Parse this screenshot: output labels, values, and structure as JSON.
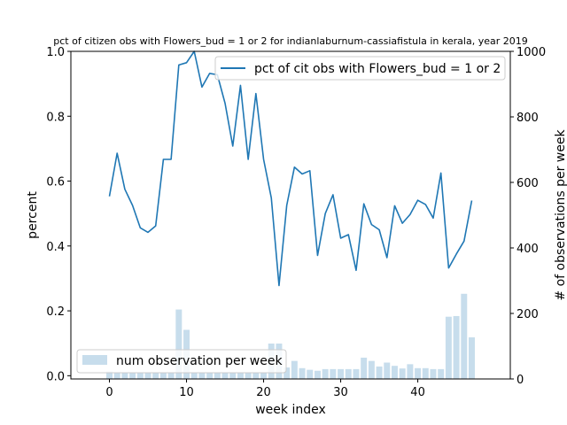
{
  "chart_data": {
    "type": "line+bar",
    "title": "pct of citizen obs with Flowers_bud = 1 or 2 for indianlaburnum-cassiafistula in kerala, year 2019",
    "xlabel": "week index",
    "ylabel_left": "percent",
    "ylabel_right": "# of observations per week",
    "xlim": [
      -5,
      52
    ],
    "ylim_left": [
      -0.01,
      1.0
    ],
    "ylim_right": [
      0,
      1000
    ],
    "x_ticks": [
      0,
      10,
      20,
      30,
      40
    ],
    "y_ticks_left": [
      0.0,
      0.2,
      0.4,
      0.6,
      0.8,
      1.0
    ],
    "y_ticks_right": [
      0,
      200,
      400,
      600,
      800,
      1000
    ],
    "legend_line": {
      "label": "pct of cit obs with Flowers_bud = 1 or 2",
      "placement": "upper-right"
    },
    "legend_bar": {
      "label": "num observation per week",
      "placement": "lower-left"
    },
    "colors": {
      "line": "#1f77b4",
      "bar": "#1f77b4",
      "bar_opacity": 0.25
    },
    "line_series": {
      "name": "pct of cit obs with Flowers_bud = 1 or 2",
      "x": [
        0,
        1,
        2,
        3,
        4,
        5,
        6,
        7,
        8,
        9,
        10,
        11,
        12,
        13,
        14,
        15,
        16,
        17,
        18,
        19,
        20,
        21,
        22,
        23,
        24,
        25,
        26,
        27,
        28,
        29,
        30,
        31,
        32,
        33,
        34,
        35,
        36,
        37,
        38,
        39,
        40,
        41,
        42,
        43,
        44,
        45,
        46,
        47
      ],
      "values": [
        0.553,
        0.686,
        0.575,
        0.525,
        0.456,
        0.442,
        0.462,
        0.667,
        0.667,
        0.958,
        0.965,
        1.0,
        0.89,
        0.932,
        0.928,
        0.84,
        0.708,
        0.895,
        0.667,
        0.87,
        0.667,
        0.548,
        0.278,
        0.525,
        0.643,
        0.622,
        0.632,
        0.371,
        0.5,
        0.558,
        0.424,
        0.435,
        0.325,
        0.53,
        0.466,
        0.45,
        0.364,
        0.524,
        0.47,
        0.497,
        0.541,
        0.528,
        0.486,
        0.625,
        0.332,
        0.375,
        0.415,
        0.54
      ]
    },
    "bar_series": {
      "name": "num observation per week",
      "x": [
        0,
        1,
        2,
        3,
        4,
        5,
        6,
        7,
        8,
        9,
        10,
        11,
        12,
        13,
        14,
        15,
        16,
        17,
        18,
        19,
        20,
        21,
        22,
        23,
        24,
        25,
        26,
        27,
        28,
        29,
        30,
        31,
        32,
        33,
        34,
        35,
        36,
        37,
        38,
        39,
        40,
        41,
        42,
        43,
        44,
        45,
        46,
        47
      ],
      "values": [
        23,
        20,
        20,
        20,
        20,
        20,
        20,
        20,
        20,
        212,
        150,
        20,
        20,
        20,
        20,
        20,
        20,
        20,
        20,
        20,
        20,
        108,
        108,
        35,
        55,
        33,
        28,
        25,
        30,
        30,
        30,
        30,
        30,
        65,
        55,
        38,
        50,
        40,
        32,
        45,
        33,
        33,
        30,
        30,
        190,
        192,
        260,
        127
      ]
    }
  }
}
